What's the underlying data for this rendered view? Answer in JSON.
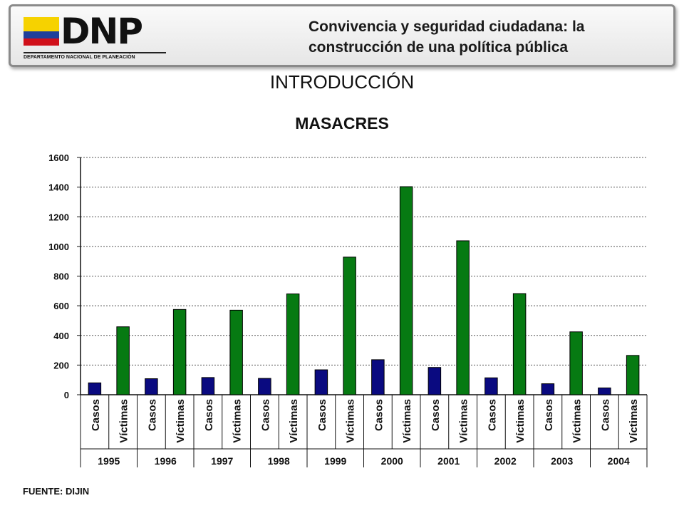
{
  "header": {
    "logo_text": "DNP",
    "logo_subtitle": "DEPARTAMENTO NACIONAL DE PLANEACIÓN",
    "title_line1": "Convivencia y seguridad ciudadana: la",
    "title_line2": "construcción de una política pública"
  },
  "section_title": "INTRODUCCIÓN",
  "source": "FUENTE: DIJIN",
  "colors": {
    "casos": "#0a0a80",
    "victimas": "#067a12",
    "flag_yellow": "#f6d200",
    "flag_blue": "#1f3f9a",
    "flag_red": "#d0101a"
  },
  "chart_data": {
    "type": "bar",
    "title": "MASACRES",
    "groups": [
      "1995",
      "1996",
      "1997",
      "1998",
      "1999",
      "2000",
      "2001",
      "2002",
      "2003",
      "2004"
    ],
    "bar_labels": [
      "Casos",
      "Víctimas"
    ],
    "series": [
      {
        "values": [
          80,
          108,
          116,
          110,
          168,
          236,
          184,
          114,
          74,
          46
        ]
      },
      {
        "values": [
          458,
          575,
          570,
          680,
          928,
          1403,
          1038,
          682,
          424,
          265
        ]
      }
    ],
    "ylim": [
      0,
      1600
    ],
    "yticks": [
      0,
      200,
      400,
      600,
      800,
      1000,
      1200,
      1400,
      1600
    ],
    "grid": true,
    "legend": "none"
  }
}
